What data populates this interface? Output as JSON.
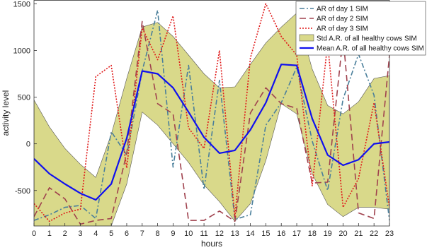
{
  "chart_data": {
    "type": "line",
    "title": "",
    "xlabel": "hours",
    "ylabel": "activity level",
    "xlim": [
      0,
      23
    ],
    "ylim": [
      -880,
      1540
    ],
    "xticks": [
      0,
      1,
      2,
      3,
      4,
      5,
      6,
      7,
      8,
      9,
      10,
      11,
      12,
      13,
      14,
      15,
      16,
      17,
      18,
      19,
      20,
      21,
      22,
      23
    ],
    "yticks": [
      -500,
      0,
      500,
      1000,
      1500
    ],
    "grid": false,
    "legend_position": "top-right",
    "x": [
      0,
      1,
      2,
      3,
      4,
      5,
      6,
      7,
      8,
      9,
      10,
      11,
      12,
      13,
      14,
      15,
      16,
      17,
      18,
      19,
      20,
      21,
      22,
      23
    ],
    "band": {
      "name": "Std A.R. of all healthy cows SIM",
      "color": "#d9d98a",
      "upper": [
        470,
        180,
        -50,
        -220,
        -360,
        100,
        700,
        1250,
        1300,
        1150,
        950,
        750,
        600,
        610,
        850,
        1080,
        1250,
        1400,
        800,
        410,
        320,
        450,
        700,
        730
      ],
      "lower": [
        -880,
        -880,
        -880,
        -880,
        -880,
        -880,
        -430,
        340,
        200,
        0,
        -200,
        -440,
        -620,
        -830,
        -640,
        -180,
        430,
        320,
        -320,
        -650,
        -780,
        -680,
        -680,
        -700
      ]
    },
    "series": [
      {
        "name": "AR of day 1 SIM",
        "color": "#4a7f9b",
        "dash": "7,3,2,3",
        "values": [
          -820,
          -760,
          -680,
          -660,
          -800,
          130,
          -120,
          780,
          1430,
          -250,
          840,
          -490,
          680,
          -810,
          -760,
          200,
          440,
          820,
          30,
          -500,
          480,
          960,
          520,
          -820
        ]
      },
      {
        "name": "AR of day 2 SIM",
        "color": "#a0424e",
        "dash": "9,5",
        "values": [
          -780,
          -470,
          -590,
          -860,
          -820,
          -800,
          -100,
          1310,
          430,
          320,
          -820,
          -820,
          -720,
          -830,
          330,
          600,
          430,
          380,
          -420,
          -410,
          1150,
          -740,
          -800,
          950
        ]
      },
      {
        "name": "AR of day 3 SIM",
        "color": "#e01a1a",
        "dash": "2,2",
        "values": [
          -640,
          -830,
          -740,
          -700,
          720,
          840,
          -260,
          1240,
          900,
          1370,
          170,
          -50,
          1000,
          -780,
          920,
          1500,
          1150,
          950,
          -450,
          1080,
          -680,
          -370,
          440,
          -680
        ]
      },
      {
        "name": "Mean A.R. of all healthy cows SIM",
        "color": "#1010ee",
        "dash": "",
        "values": [
          -160,
          -320,
          -430,
          -530,
          -600,
          -430,
          60,
          780,
          750,
          600,
          340,
          70,
          -100,
          -70,
          150,
          440,
          850,
          840,
          270,
          -120,
          -230,
          -170,
          0,
          20
        ]
      }
    ],
    "legend": [
      {
        "name": "AR of day 1 SIM",
        "kind": "line",
        "color": "#4a7f9b",
        "dash": "7,3,2,3"
      },
      {
        "name": "AR of day 2 SIM",
        "kind": "line",
        "color": "#a0424e",
        "dash": "9,5"
      },
      {
        "name": "AR of day 3 SIM",
        "kind": "line",
        "color": "#e01a1a",
        "dash": "2,2"
      },
      {
        "name": "Std A.R. of all healthy cows SIM",
        "kind": "patch",
        "color": "#d9d98a"
      },
      {
        "name": "Mean A.R. of all healthy cows SIM",
        "kind": "line",
        "color": "#1010ee",
        "dash": ""
      }
    ]
  }
}
